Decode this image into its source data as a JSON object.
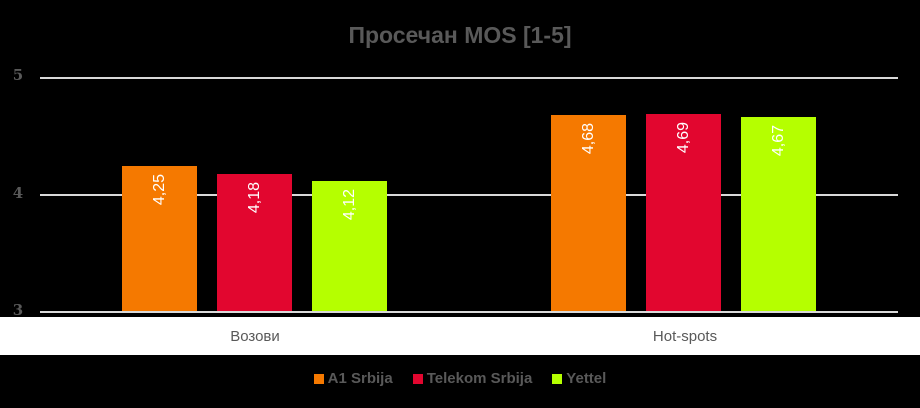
{
  "chart_data": {
    "type": "bar",
    "title": "Просечан MOS [1-5]",
    "xlabel": "",
    "ylabel": "",
    "ylim": [
      3,
      5
    ],
    "yticks": [
      "3",
      "4",
      "5"
    ],
    "grid": true,
    "legend_position": "bottom",
    "categories": [
      "Возови",
      "Hot-spots"
    ],
    "series": [
      {
        "name": "A1 Srbija",
        "color": "#f57900",
        "values": [
          4.25,
          4.68
        ],
        "labels": [
          "4,25",
          "4,68"
        ]
      },
      {
        "name": "Telekom Srbija",
        "color": "#e2062f",
        "values": [
          4.18,
          4.69
        ],
        "labels": [
          "4,18",
          "4,69"
        ]
      },
      {
        "name": "Yettel",
        "color": "#b5ff00",
        "values": [
          4.12,
          4.67
        ],
        "labels": [
          "4,12",
          "4,67"
        ]
      }
    ]
  }
}
